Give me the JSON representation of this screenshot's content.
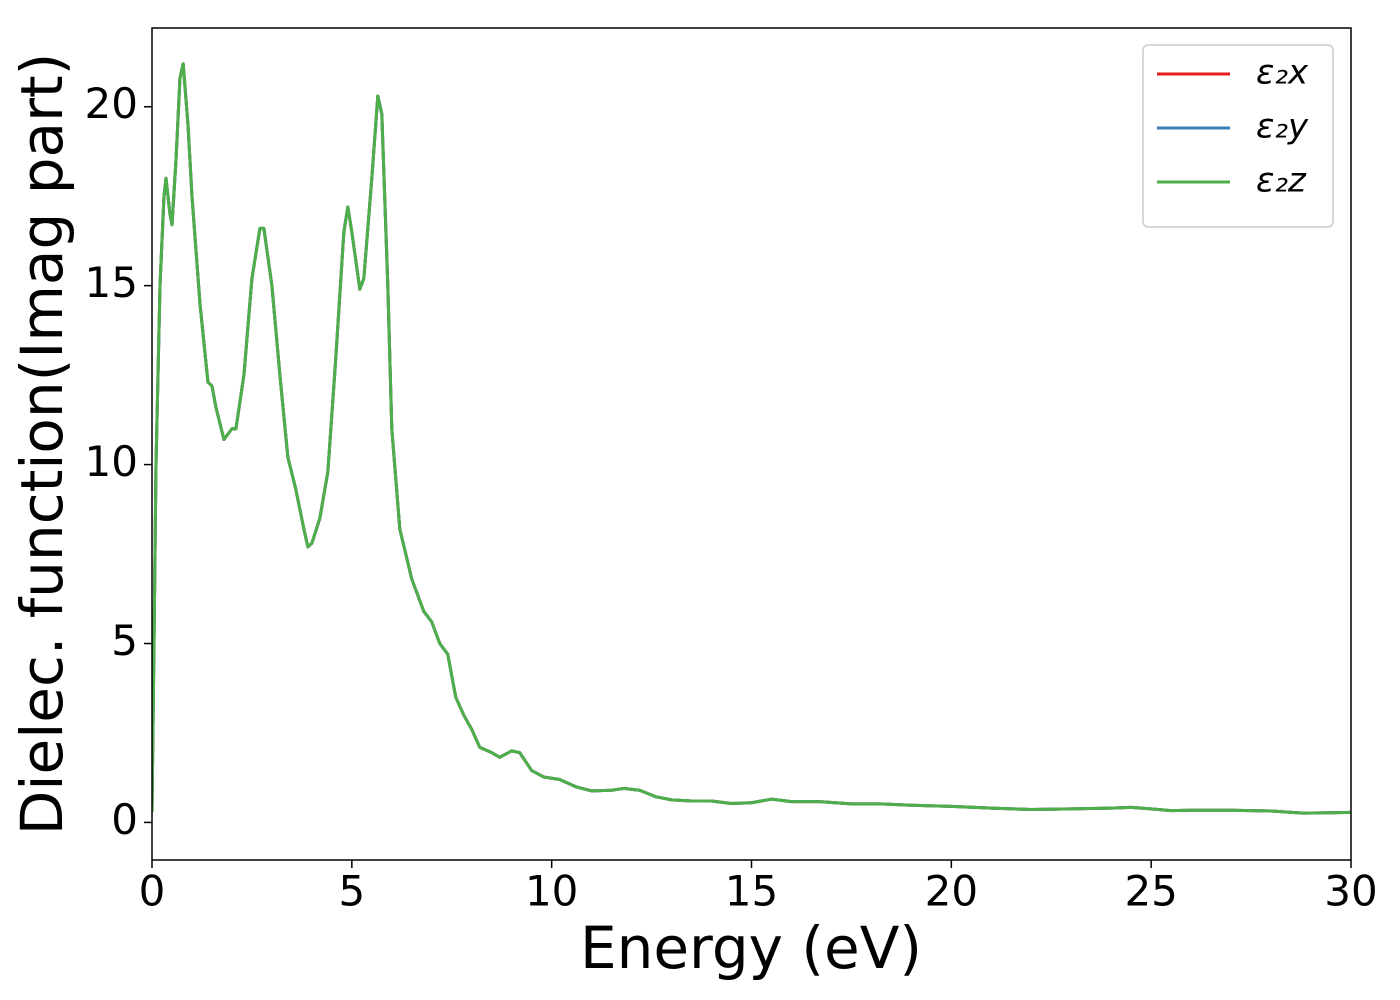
{
  "chart_data": {
    "type": "line",
    "x_label": "Energy (eV)",
    "y_label": "Dielec. function(Imag part)",
    "x": [
      0,
      0.05,
      0.1,
      0.2,
      0.3,
      0.35,
      0.45,
      0.5,
      0.6,
      0.7,
      0.78,
      0.9,
      1.0,
      1.2,
      1.4,
      1.5,
      1.6,
      1.8,
      2.0,
      2.1,
      2.3,
      2.5,
      2.7,
      2.8,
      3.0,
      3.2,
      3.4,
      3.6,
      3.8,
      3.9,
      4.0,
      4.2,
      4.4,
      4.6,
      4.8,
      4.9,
      5.0,
      5.2,
      5.3,
      5.5,
      5.65,
      5.75,
      5.9,
      6.0,
      6.2,
      6.5,
      6.8,
      7.0,
      7.2,
      7.4,
      7.6,
      7.8,
      8.0,
      8.2,
      8.5,
      8.7,
      9.0,
      9.2,
      9.5,
      9.8,
      10.2,
      10.6,
      11.0,
      11.5,
      11.8,
      12.2,
      12.6,
      13.0,
      13.5,
      14.0,
      14.5,
      15.0,
      15.5,
      16.0,
      16.7,
      17.5,
      18.2,
      19.0,
      20.0,
      21.0,
      22.0,
      23.0,
      24.0,
      24.5,
      25.0,
      25.5,
      26.0,
      27.0,
      28.0,
      28.8,
      29.5,
      30.0
    ],
    "series": [
      {
        "name": "ε₂x",
        "color": "#e41a1c",
        "values": [
          0.3,
          5,
          10,
          15,
          17.5,
          18,
          17,
          16.7,
          18.5,
          20.8,
          21.2,
          19.5,
          17.5,
          14.5,
          12.3,
          12.2,
          11.6,
          10.7,
          11.0,
          11.0,
          12.5,
          15.2,
          16.6,
          16.6,
          15.0,
          12.5,
          10.2,
          9.3,
          8.2,
          7.7,
          7.8,
          8.5,
          9.8,
          13,
          16.5,
          17.2,
          16.5,
          14.9,
          15.2,
          18,
          20.3,
          19.8,
          15,
          11,
          8.2,
          6.8,
          5.9,
          5.6,
          5.0,
          4.7,
          3.5,
          3.0,
          2.6,
          2.1,
          1.95,
          1.82,
          2.0,
          1.95,
          1.45,
          1.27,
          1.2,
          1.0,
          0.88,
          0.9,
          0.95,
          0.9,
          0.72,
          0.63,
          0.6,
          0.6,
          0.53,
          0.55,
          0.65,
          0.58,
          0.58,
          0.52,
          0.52,
          0.48,
          0.45,
          0.4,
          0.36,
          0.38,
          0.4,
          0.42,
          0.38,
          0.33,
          0.34,
          0.34,
          0.32,
          0.26,
          0.27,
          0.28
        ]
      },
      {
        "name": "ε₂y",
        "color": "#377eb8",
        "values": [
          0.3,
          5,
          10,
          15,
          17.5,
          18,
          17,
          16.7,
          18.5,
          20.8,
          21.2,
          19.5,
          17.5,
          14.5,
          12.3,
          12.2,
          11.6,
          10.7,
          11.0,
          11.0,
          12.5,
          15.2,
          16.6,
          16.6,
          15.0,
          12.5,
          10.2,
          9.3,
          8.2,
          7.7,
          7.8,
          8.5,
          9.8,
          13,
          16.5,
          17.2,
          16.5,
          14.9,
          15.2,
          18,
          20.3,
          19.8,
          15,
          11,
          8.2,
          6.8,
          5.9,
          5.6,
          5.0,
          4.7,
          3.5,
          3.0,
          2.6,
          2.1,
          1.95,
          1.82,
          2.0,
          1.95,
          1.45,
          1.27,
          1.2,
          1.0,
          0.88,
          0.9,
          0.95,
          0.9,
          0.72,
          0.63,
          0.6,
          0.6,
          0.53,
          0.55,
          0.65,
          0.58,
          0.58,
          0.52,
          0.52,
          0.48,
          0.45,
          0.4,
          0.36,
          0.38,
          0.4,
          0.42,
          0.38,
          0.33,
          0.34,
          0.34,
          0.32,
          0.26,
          0.27,
          0.28
        ]
      },
      {
        "name": "ε₂z",
        "color": "#4daf4a",
        "values": [
          0.3,
          5,
          10,
          15,
          17.5,
          18,
          17,
          16.7,
          18.5,
          20.8,
          21.2,
          19.5,
          17.5,
          14.5,
          12.3,
          12.2,
          11.6,
          10.7,
          11.0,
          11.0,
          12.5,
          15.2,
          16.6,
          16.6,
          15.0,
          12.5,
          10.2,
          9.3,
          8.2,
          7.7,
          7.8,
          8.5,
          9.8,
          13,
          16.5,
          17.2,
          16.5,
          14.9,
          15.2,
          18,
          20.3,
          19.8,
          15,
          11,
          8.2,
          6.8,
          5.9,
          5.6,
          5.0,
          4.7,
          3.5,
          3.0,
          2.6,
          2.1,
          1.95,
          1.82,
          2.0,
          1.95,
          1.45,
          1.27,
          1.2,
          1.0,
          0.88,
          0.9,
          0.95,
          0.9,
          0.72,
          0.63,
          0.6,
          0.6,
          0.53,
          0.55,
          0.65,
          0.58,
          0.58,
          0.52,
          0.52,
          0.48,
          0.45,
          0.4,
          0.36,
          0.38,
          0.4,
          0.42,
          0.38,
          0.33,
          0.34,
          0.34,
          0.32,
          0.26,
          0.27,
          0.28
        ]
      }
    ],
    "xlim": [
      0,
      30
    ],
    "xticks": [
      0,
      5,
      10,
      15,
      20,
      25,
      30
    ],
    "ylim": [
      -1.05,
      22.2
    ],
    "yticks": [
      0,
      5,
      10,
      15,
      20
    ],
    "grid": false,
    "legend": "upper right"
  }
}
